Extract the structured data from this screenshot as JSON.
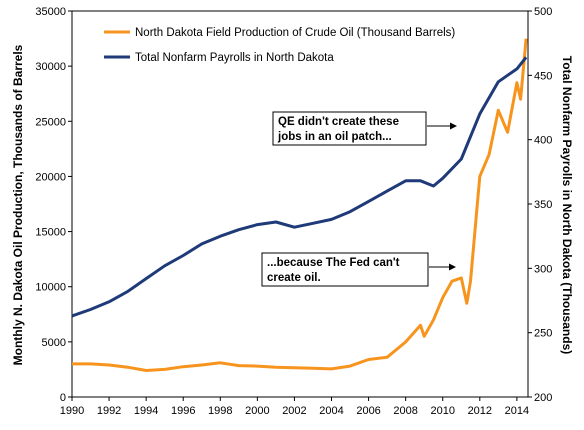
{
  "chart_data": {
    "type": "line",
    "title": "",
    "xlabel": "",
    "ylabel": "Monthly N. Dakota Oil Production, Thousands of Barrels",
    "y2label": "Total Nonfarm Payrolls in North Dakota (Thousands)",
    "xlim": [
      1990,
      2014.6
    ],
    "ylim": [
      0,
      35000
    ],
    "y2lim": [
      200,
      500
    ],
    "x_ticks": [
      "1990",
      "1992",
      "1994",
      "1996",
      "1998",
      "2000",
      "2002",
      "2004",
      "2006",
      "2008",
      "2010",
      "2012",
      "2014"
    ],
    "y_ticks": [
      "0",
      "5000",
      "10000",
      "15000",
      "20000",
      "25000",
      "30000",
      "35000"
    ],
    "y2_ticks": [
      "200",
      "250",
      "300",
      "350",
      "400",
      "450",
      "500"
    ],
    "grid": false,
    "legend_position": "top-left",
    "series": [
      {
        "name": "North Dakota Field Production of Crude Oil (Thousand Barrels)",
        "axis": "left",
        "color": "#F7941D",
        "x": [
          1990,
          1991,
          1992,
          1993,
          1994,
          1995,
          1996,
          1997,
          1998,
          1999,
          2000,
          2001,
          2002,
          2003,
          2004,
          2005,
          2006,
          2007,
          2008,
          2008.8,
          2009,
          2009.5,
          2010,
          2010.5,
          2011,
          2011.3,
          2011.5,
          2012,
          2012.5,
          2013,
          2013.5,
          2014,
          2014.2,
          2014.5
        ],
        "values": [
          3000,
          3000,
          2900,
          2700,
          2400,
          2500,
          2750,
          2900,
          3100,
          2850,
          2800,
          2700,
          2650,
          2600,
          2550,
          2800,
          3400,
          3600,
          5000,
          6500,
          5500,
          7000,
          9000,
          10500,
          10800,
          8500,
          10500,
          20000,
          22000,
          26000,
          24000,
          28500,
          27000,
          32500
        ]
      },
      {
        "name": "Total Nonfarm Payrolls in North Dakota",
        "axis": "right",
        "color": "#1F3A78",
        "x": [
          1990,
          1991,
          1992,
          1993,
          1994,
          1995,
          1996,
          1997,
          1998,
          1999,
          2000,
          2001,
          2002,
          2003,
          2004,
          2005,
          2006,
          2007,
          2008,
          2008.8,
          2009.5,
          2010,
          2011,
          2012,
          2013,
          2013.5,
          2014,
          2014.5
        ],
        "values": [
          263,
          268,
          274,
          282,
          292,
          302,
          310,
          319,
          325,
          330,
          334,
          336,
          332,
          335,
          338,
          344,
          352,
          360,
          368,
          368,
          364,
          370,
          385,
          420,
          445,
          450,
          455,
          464
        ]
      }
    ],
    "annotations": [
      {
        "lines": [
          "QE didn't create these",
          "jobs in an oil patch..."
        ],
        "points_to": "Total Nonfarm Payrolls in North Dakota"
      },
      {
        "lines": [
          "...because The Fed can't",
          "create oil."
        ],
        "points_to": "North Dakota Field Production of Crude Oil (Thousand Barrels)"
      }
    ]
  }
}
